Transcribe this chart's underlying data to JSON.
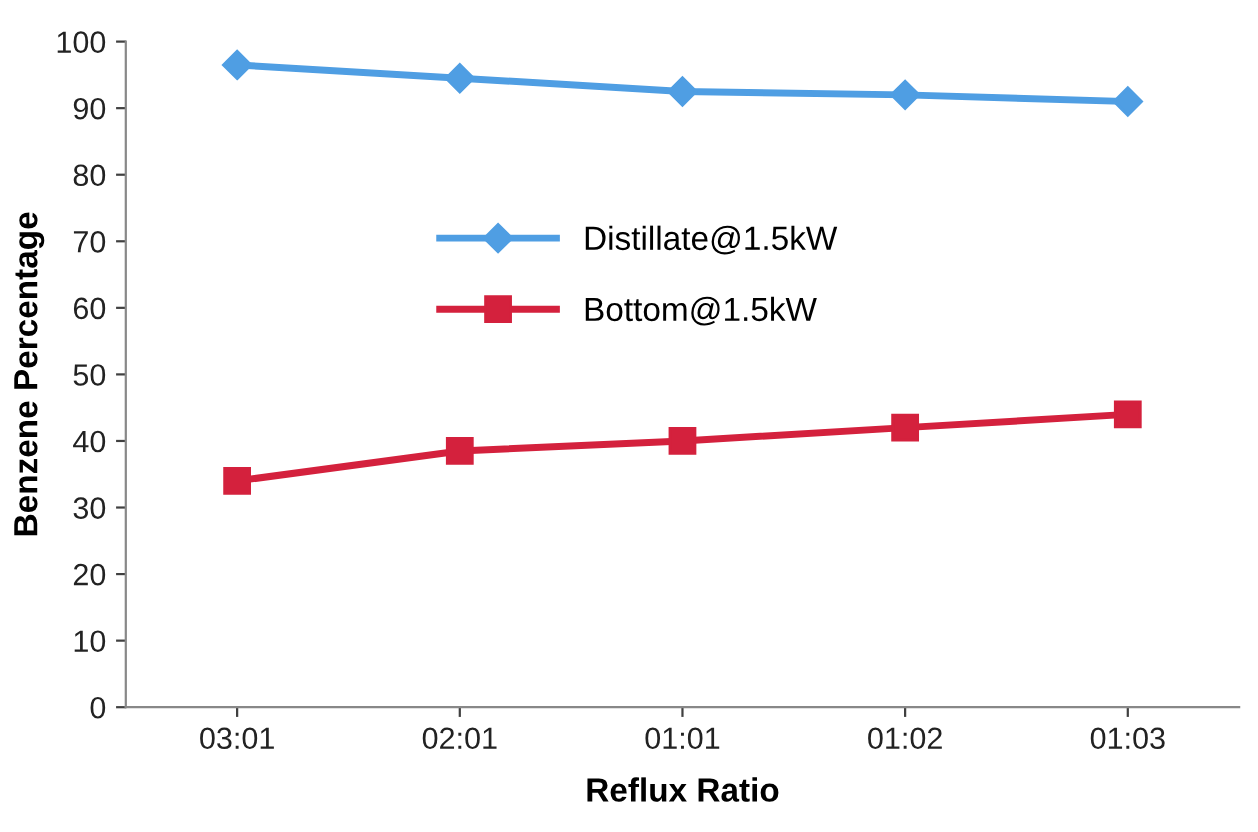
{
  "chart_data": {
    "type": "line",
    "xlabel": "Reflux Ratio",
    "ylabel": "Benzene Percentage",
    "categories": [
      "03:01",
      "02:01",
      "01:01",
      "01:02",
      "01:03"
    ],
    "series": [
      {
        "name": "Distillate@1.5kW",
        "color": "#4f9ee3",
        "marker": "diamond",
        "values": [
          96.5,
          94.5,
          92.5,
          92,
          91
        ]
      },
      {
        "name": "Bottom@1.5kW",
        "color": "#d4213d",
        "marker": "square",
        "values": [
          34,
          38.5,
          40,
          42,
          44
        ]
      }
    ],
    "ylim": [
      0,
      100
    ],
    "yticks": [
      0,
      10,
      20,
      30,
      40,
      50,
      60,
      70,
      80,
      90,
      100
    ],
    "grid": false,
    "legend": "center",
    "line_style": "solid"
  }
}
